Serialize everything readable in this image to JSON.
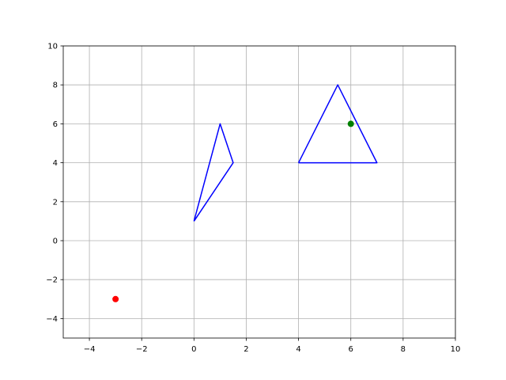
{
  "chart_data": {
    "type": "scatter",
    "xlim": [
      -5,
      10
    ],
    "ylim": [
      -5,
      10
    ],
    "x_ticks": [
      -4,
      -2,
      0,
      2,
      4,
      6,
      8,
      10
    ],
    "y_ticks": [
      -4,
      -2,
      0,
      2,
      4,
      6,
      8,
      10
    ],
    "x_tick_labels": [
      "−4",
      "−2",
      "0",
      "2",
      "4",
      "6",
      "8",
      "10"
    ],
    "y_tick_labels": [
      "−4",
      "−2",
      "0",
      "2",
      "4",
      "6",
      "8",
      "10"
    ],
    "grid": true,
    "polygons": [
      {
        "color": "#0000ff",
        "points": [
          [
            0,
            1
          ],
          [
            1,
            6
          ],
          [
            1.5,
            4
          ],
          [
            0,
            1
          ]
        ]
      },
      {
        "color": "#0000ff",
        "points": [
          [
            4,
            4
          ],
          [
            5.5,
            8
          ],
          [
            7,
            4
          ],
          [
            4,
            4
          ]
        ]
      }
    ],
    "points": [
      {
        "color": "#ff0000",
        "x": -3,
        "y": -3
      },
      {
        "color": "#008000",
        "x": 6,
        "y": 6
      }
    ]
  }
}
